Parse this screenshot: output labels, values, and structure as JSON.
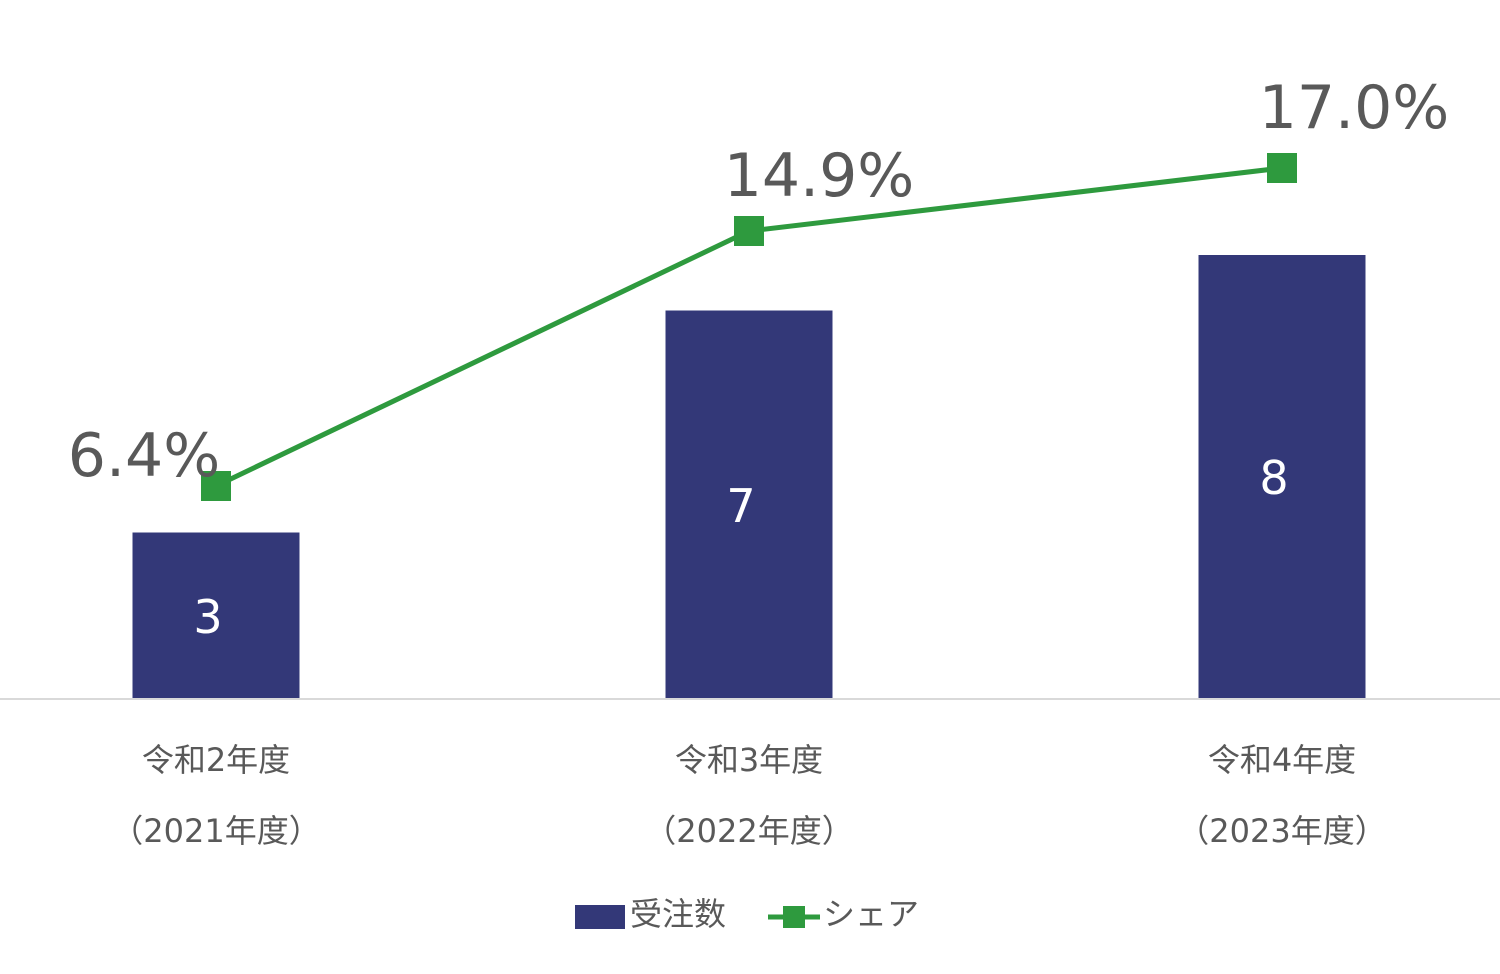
{
  "chart_data": {
    "type": "bar",
    "categories": [
      [
        "令和2年度",
        "（2021年度）"
      ],
      [
        "令和3年度",
        "（2022年度）"
      ],
      [
        "令和4年度",
        "（2023年度）"
      ]
    ],
    "series": [
      {
        "name": "受注数",
        "type": "bar",
        "values": [
          3,
          7,
          8
        ],
        "value_labels": [
          "3",
          "7",
          "8"
        ],
        "color": "#333878"
      },
      {
        "name": "シェア",
        "type": "line",
        "values": [
          6.4,
          14.9,
          17.0
        ],
        "value_labels": [
          "6.4%",
          "14.9%",
          "17.0%"
        ],
        "color": "#2e9a3e"
      }
    ],
    "bar_axis_range": [
      0,
      11
    ],
    "line_axis_range": [
      0,
      21
    ],
    "legend_position": "bottom",
    "grid": false
  }
}
